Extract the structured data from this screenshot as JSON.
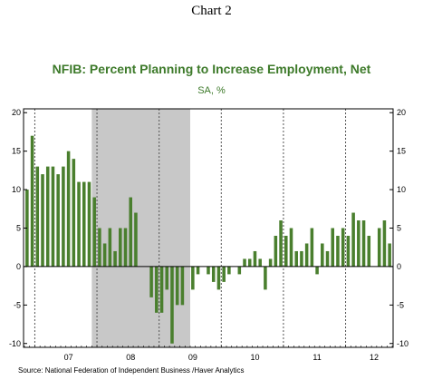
{
  "page_title": "Chart 2",
  "chart_data": {
    "type": "bar",
    "title": "NFIB: Percent Planning to Increase Employment, Net",
    "subtitle": "SA, %",
    "source": "Source:  National Federation of Independent Business /Haver Analytics",
    "start": "2006-11",
    "y_ticks": [
      "20",
      "15",
      "10",
      "5",
      "0",
      "-5",
      "-10"
    ],
    "year_labels": [
      {
        "label": "07",
        "month": "2007-07"
      },
      {
        "label": "08",
        "month": "2008-07"
      },
      {
        "label": "09",
        "month": "2009-07"
      },
      {
        "label": "10",
        "month": "2010-07"
      },
      {
        "label": "11",
        "month": "2011-07"
      },
      {
        "label": "12",
        "month": "2012-06"
      }
    ],
    "values": [
      10,
      17,
      13,
      12,
      13,
      13,
      12,
      13,
      15,
      14,
      11,
      11,
      11,
      9,
      5,
      3,
      5,
      2,
      5,
      5,
      9,
      7,
      0,
      0,
      -4,
      -6,
      -6,
      -3,
      -10,
      -5,
      -5,
      0,
      -3,
      -1,
      0,
      -1,
      -2,
      -3,
      -2,
      -1,
      0,
      -1,
      1,
      1,
      2,
      1,
      -3,
      1,
      4,
      6,
      4,
      5,
      2,
      2,
      3,
      5,
      -1,
      3,
      2,
      5,
      4,
      5,
      4,
      7,
      6,
      6,
      4,
      0,
      5,
      6,
      3
    ],
    "color": "#4a7f2e",
    "recession_shading": {
      "start": "2007-12",
      "end": "2009-06",
      "color": "#c8c8c8"
    },
    "ylim": [
      -10.5,
      20.5
    ],
    "right_axis": true,
    "grid": false
  }
}
